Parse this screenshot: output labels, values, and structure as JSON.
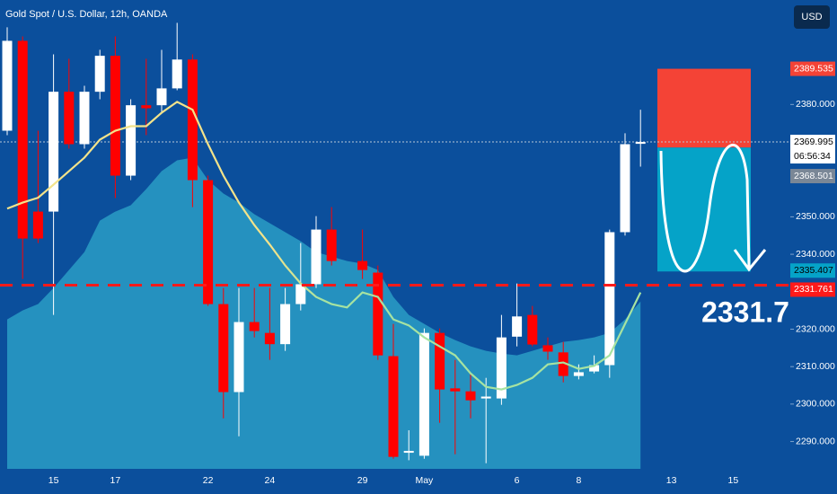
{
  "chart_data": {
    "type": "candlestick",
    "title": "Gold Spot / U.S. Dollar, 12h, OANDA",
    "currency": "USD",
    "categories": [
      null,
      null,
      null,
      "15",
      null,
      null,
      null,
      "17",
      null,
      null,
      null,
      null,
      null,
      "22",
      null,
      null,
      null,
      "24",
      null,
      null,
      null,
      null,
      null,
      "29",
      null,
      null,
      null,
      "May",
      null,
      null,
      null,
      null,
      null,
      "6",
      null,
      null,
      null,
      "8",
      null,
      null,
      null,
      null,
      null,
      "13",
      null,
      null,
      null,
      "15"
    ],
    "open": [
      2373.0,
      2397.0,
      2351.4,
      2351.4,
      2383.4,
      2369.4,
      2383.4,
      2393.0,
      2361.0,
      2379.8,
      2379.8,
      2384.3,
      2392.0,
      2359.8,
      2326.7,
      2303.2,
      2321.9,
      2319.0,
      2316.0,
      2326.7,
      2332.0,
      2346.6,
      null,
      2338.2,
      2335.1,
      2312.8,
      2287.0,
      2286.2,
      2319.0,
      2304.2,
      2303.4,
      2301.5,
      2301.5,
      2318.0,
      2323.8,
      2315.7,
      2313.8,
      2307.5,
      2308.7,
      2310.4,
      2345.9,
      2369.5,
      null,
      null,
      null,
      null,
      null,
      null
    ],
    "high": [
      2400.6,
      2398.2,
      2373.0,
      2393.4,
      2392.2,
      2385.0,
      2394.6,
      2398.2,
      2381.4,
      2392.2,
      2394.6,
      2401.8,
      2393.4,
      2361.0,
      2331.0,
      2331.0,
      2331.0,
      2331.0,
      2331.0,
      2343.0,
      2350.2,
      2352.6,
      null,
      2346.6,
      2337.0,
      2321.4,
      2293.0,
      2320.2,
      2320.2,
      2311.8,
      2308.2,
      2307.0,
      2323.8,
      2332.2,
      2326.2,
      2317.8,
      2316.6,
      2310.6,
      2313.0,
      2346.6,
      2372.3,
      2378.6,
      null,
      null,
      null,
      null,
      null,
      null
    ],
    "low": [
      2371.8,
      2333.4,
      2343.0,
      2323.8,
      2368.2,
      2368.2,
      2381.4,
      2355.0,
      2359.8,
      2371.8,
      2377.8,
      2383.8,
      2352.6,
      2326.2,
      2296.2,
      2291.4,
      2317.8,
      2311.8,
      2314.2,
      2325.0,
      2331.0,
      2337.0,
      null,
      2333.4,
      2311.8,
      2285.4,
      2285.0,
      2285.4,
      2295.0,
      2286.6,
      2296.2,
      2284.2,
      2299.8,
      2315.4,
      2315.4,
      2311.8,
      2305.8,
      2306.6,
      2308.2,
      2307.0,
      2345.0,
      2363.4,
      null,
      null,
      null,
      null,
      null,
      null
    ],
    "close": [
      2397.0,
      2344.2,
      2344.2,
      2383.4,
      2369.4,
      2383.4,
      2393.0,
      2361.0,
      2379.8,
      2379.0,
      2384.3,
      2392.0,
      2359.8,
      2326.7,
      2303.2,
      2321.9,
      2319.5,
      2316.0,
      2326.7,
      2332.0,
      2346.6,
      2338.2,
      null,
      2335.8,
      2313.0,
      2285.9,
      2287.5,
      2319.0,
      2303.9,
      2303.4,
      2301.0,
      2302.0,
      2317.8,
      2323.4,
      2315.9,
      2314.0,
      2307.5,
      2308.5,
      2310.4,
      2345.9,
      2369.4,
      2370.0,
      null,
      null,
      null,
      null,
      null,
      null
    ],
    "up_color": "#ffffff",
    "down_color": "#ff0000",
    "ma_line": {
      "colors": [
        "#f3e38a",
        "#a6e3a1"
      ],
      "values": [
        2352.2,
        2353.8,
        2355.1,
        2358.6,
        2362.2,
        2365.8,
        2370.6,
        2373.0,
        2374.2,
        2374.2,
        2377.8,
        2380.7,
        2378.6,
        2369.4,
        2361.0,
        2353.8,
        2347.8,
        2342.6,
        2337.0,
        2332.2,
        2328.6,
        2326.7,
        2325.8,
        2329.8,
        2328.6,
        2322.6,
        2321.0,
        2317.8,
        2315.4,
        2313.0,
        2308.2,
        2304.6,
        2303.9,
        2305.1,
        2307.0,
        2310.6,
        2311.1,
        2309.4,
        2310.2,
        2313.0,
        2321.4,
        2329.8,
        null,
        null,
        null,
        null,
        null,
        null
      ]
    },
    "area": {
      "color": "#2a9cc6",
      "values": [
        2322.6,
        2325.0,
        2326.7,
        2331.0,
        2335.8,
        2340.6,
        2349.0,
        2351.4,
        2353.1,
        2357.4,
        2362.2,
        2365.1,
        2365.8,
        2359.8,
        2356.2,
        2353.8,
        2350.7,
        2348.3,
        2345.9,
        2343.5,
        2340.6,
        2339.4,
        2338.2,
        2337.5,
        2335.8,
        2328.6,
        2323.8,
        2321.4,
        2319.0,
        2317.1,
        2315.4,
        2314.2,
        2313.5,
        2313.0,
        2314.2,
        2315.4,
        2316.6,
        2317.1,
        2317.8,
        2319.0,
        2322.6,
        2327.4,
        null,
        null,
        null,
        null,
        null,
        null
      ]
    },
    "ylim": [
      2282.7,
      2407.9
    ],
    "yticks": [
      {
        "value": 2290,
        "label": "2290.000"
      },
      {
        "value": 2300,
        "label": "2300.000"
      },
      {
        "value": 2310,
        "label": "2310.000"
      },
      {
        "value": 2320,
        "label": "2320.000"
      },
      {
        "value": 2340,
        "label": "2340.000"
      },
      {
        "value": 2350,
        "label": "2350.000"
      },
      {
        "value": 2380,
        "label": "2380.000"
      }
    ],
    "current_price": 2369.995,
    "countdown": "06:56:34",
    "prev_price": 2368.501,
    "position": {
      "stop": 2389.535,
      "entry": 2368.501,
      "target": 2335.407,
      "stop_color": "#f44336",
      "target_color": "#05a3c8"
    },
    "level": {
      "value": 2331.761,
      "color": "#ff1a1a"
    },
    "annotation": "2331.7"
  }
}
